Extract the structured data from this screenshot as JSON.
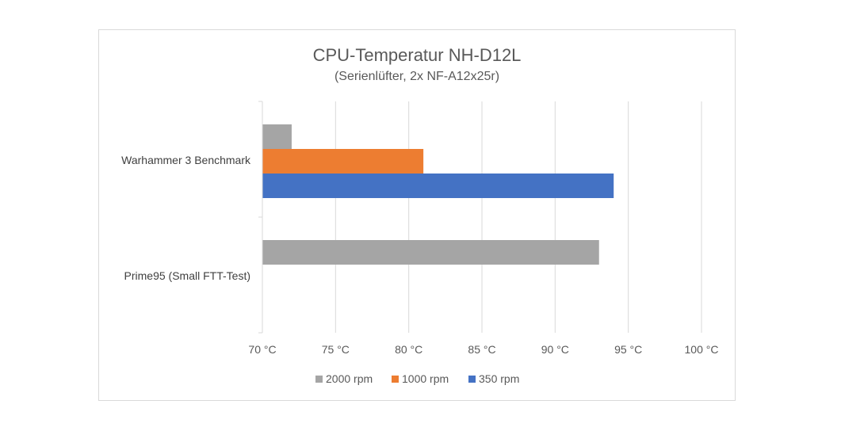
{
  "chart_data": {
    "type": "bar",
    "orientation": "horizontal",
    "title": "CPU-Temperatur NH-D12L",
    "subtitle": "(Serienlüfter, 2x NF-A12x25r)",
    "categories": [
      "Warhammer 3 Benchmark",
      "Prime95 (Small FTT-Test)"
    ],
    "series": [
      {
        "name": "2000 rpm",
        "color": "#a5a5a5",
        "values": [
          72,
          93
        ]
      },
      {
        "name": "1000 rpm",
        "color": "#ed7d31",
        "values": [
          81,
          null
        ]
      },
      {
        "name": "350 rpm",
        "color": "#4472c4",
        "values": [
          94,
          null
        ]
      }
    ],
    "xlim": [
      70,
      100
    ],
    "xticks": [
      70,
      75,
      80,
      85,
      90,
      95,
      100
    ],
    "xtick_labels": [
      "70 °C",
      "75 °C",
      "80 °C",
      "85 °C",
      "90 °C",
      "95 °C",
      "100 °C"
    ],
    "grid": true,
    "legend": "bottom"
  }
}
